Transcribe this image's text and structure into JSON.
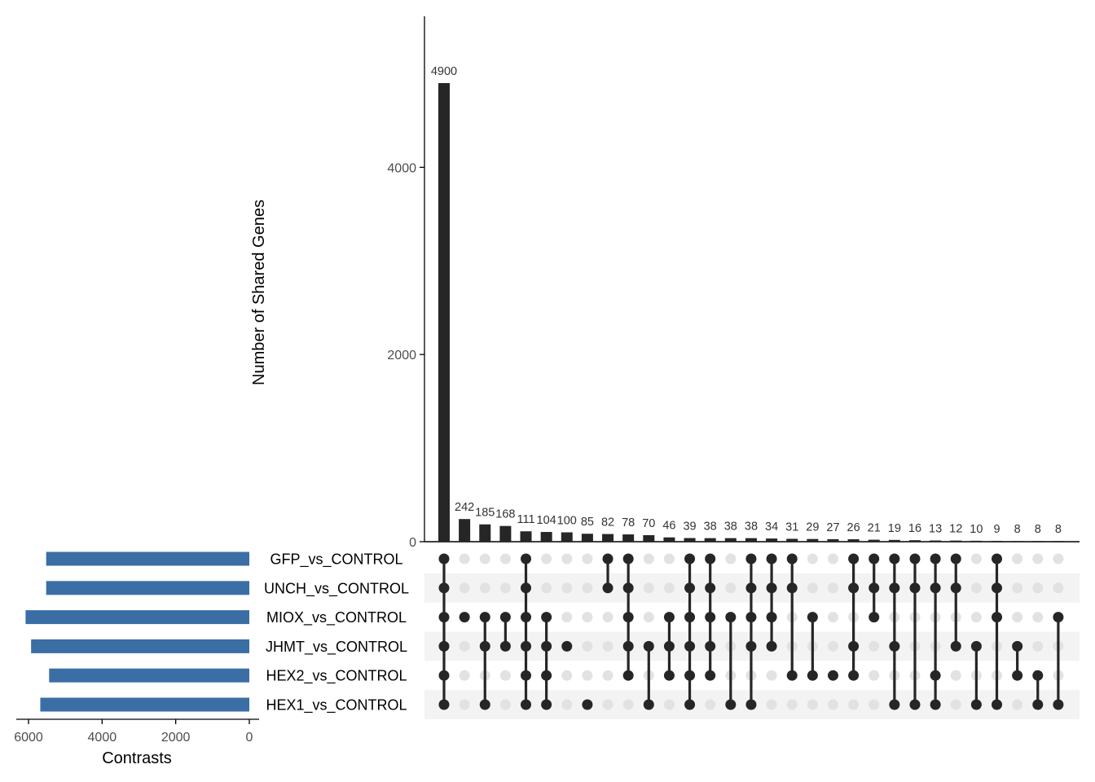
{
  "chart_data": {
    "type": "upset",
    "colors": {
      "bar": "#262626",
      "set_bar": "#3a6ea5",
      "dot_on": "#262626",
      "dot_off": "#e2e2e2",
      "stripe": "#f3f3f3",
      "axis": "#000000",
      "text": "#000000",
      "tick_text": "#4d4d4d"
    },
    "intersection_axis": {
      "label": "Number of Shared Genes",
      "ylim": [
        0,
        5600
      ],
      "ticks": [
        0,
        2000,
        4000
      ]
    },
    "set_axis": {
      "label": "Contrasts",
      "xlim": [
        0,
        6300
      ],
      "ticks": [
        6000,
        4000,
        2000,
        0
      ],
      "direction": "reversed"
    },
    "sets": [
      {
        "name": "GFP_vs_CONTROL",
        "size": 5520
      },
      {
        "name": "UNCH_vs_CONTROL",
        "size": 5520
      },
      {
        "name": "MIOX_vs_CONTROL",
        "size": 6080
      },
      {
        "name": "JHMT_vs_CONTROL",
        "size": 5930
      },
      {
        "name": "HEX2_vs_CONTROL",
        "size": 5440
      },
      {
        "name": "HEX1_vs_CONTROL",
        "size": 5680
      }
    ],
    "intersections": [
      {
        "label": "4900",
        "value": 4900,
        "members": [
          0,
          1,
          2,
          3,
          4,
          5
        ]
      },
      {
        "label": "242",
        "value": 242,
        "members": [
          2
        ]
      },
      {
        "label": "185",
        "value": 185,
        "members": [
          2,
          3,
          5
        ]
      },
      {
        "label": "168",
        "value": 168,
        "members": [
          2,
          3
        ]
      },
      {
        "label": "111",
        "value": 111,
        "members": [
          0,
          1,
          2,
          3,
          4,
          5
        ]
      },
      {
        "label": "104",
        "value": 104,
        "members": [
          2,
          3,
          4,
          5
        ]
      },
      {
        "label": "100",
        "value": 100,
        "members": [
          3
        ]
      },
      {
        "label": "85",
        "value": 85,
        "members": [
          5
        ]
      },
      {
        "label": "82",
        "value": 82,
        "members": [
          0,
          1
        ]
      },
      {
        "label": "78",
        "value": 78,
        "members": [
          0,
          1,
          2,
          3,
          4
        ]
      },
      {
        "label": "70",
        "value": 70,
        "members": [
          3,
          5
        ]
      },
      {
        "label": "46",
        "value": 46,
        "members": [
          2,
          3,
          4
        ]
      },
      {
        "label": "39",
        "value": 39,
        "members": [
          0,
          1,
          2,
          3,
          4,
          5
        ]
      },
      {
        "label": "38",
        "value": 38,
        "members": [
          0,
          1,
          2,
          3,
          4
        ]
      },
      {
        "label": "38",
        "value": 38,
        "members": [
          2,
          5
        ]
      },
      {
        "label": "38",
        "value": 38,
        "members": [
          0,
          1,
          2,
          3,
          5
        ]
      },
      {
        "label": "34",
        "value": 34,
        "members": [
          0,
          1,
          2,
          3
        ]
      },
      {
        "label": "31",
        "value": 31,
        "members": [
          0,
          1,
          4
        ]
      },
      {
        "label": "29",
        "value": 29,
        "members": [
          2,
          4
        ]
      },
      {
        "label": "27",
        "value": 27,
        "members": [
          4
        ]
      },
      {
        "label": "26",
        "value": 26,
        "members": [
          0,
          1,
          3,
          4
        ]
      },
      {
        "label": "21",
        "value": 21,
        "members": [
          0,
          1,
          2
        ]
      },
      {
        "label": "19",
        "value": 19,
        "members": [
          0,
          1,
          3,
          5
        ]
      },
      {
        "label": "16",
        "value": 16,
        "members": [
          0,
          1,
          5
        ]
      },
      {
        "label": "13",
        "value": 13,
        "members": [
          0,
          1,
          4,
          5
        ]
      },
      {
        "label": "12",
        "value": 12,
        "members": [
          0,
          1,
          3
        ]
      },
      {
        "label": "10",
        "value": 10,
        "members": [
          3,
          5
        ]
      },
      {
        "label": "9",
        "value": 9,
        "members": [
          0,
          1,
          2,
          5
        ]
      },
      {
        "label": "8",
        "value": 8,
        "members": [
          3,
          4
        ]
      },
      {
        "label": "8",
        "value": 8,
        "members": [
          4,
          5
        ]
      },
      {
        "label": "8",
        "value": 8,
        "members": [
          2,
          5
        ]
      }
    ]
  }
}
